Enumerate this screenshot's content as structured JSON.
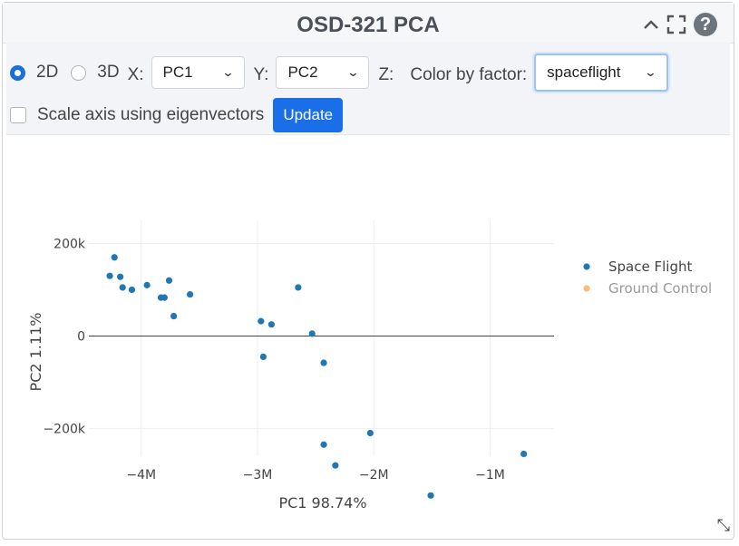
{
  "panel": {
    "title": "OSD-321 PCA",
    "icons": [
      "chevron-up-icon",
      "expand-icon",
      "help-icon"
    ]
  },
  "controls": {
    "mode_2d": "2D",
    "mode_3d": "3D",
    "mode_selected": "2D",
    "x_label": "X:",
    "x_value": "PC1",
    "y_label": "Y:",
    "y_value": "PC2",
    "z_label": "Z:",
    "color_label": "Color by factor:",
    "color_value": "spaceflight",
    "scale_label": "Scale axis using eigenvectors",
    "scale_checked": false,
    "update_label": "Update"
  },
  "chart_data": {
    "type": "scatter",
    "xlabel": "PC1 98.74%",
    "ylabel": "PC2 1.11%",
    "xlim": [
      -4450000,
      -450000
    ],
    "ylim": [
      -260000,
      250000
    ],
    "x_ticks": [
      -4000000,
      -3000000,
      -2000000,
      -1000000
    ],
    "x_tick_labels": [
      "−4M",
      "−3M",
      "−2M",
      "−1M"
    ],
    "y_ticks": [
      200000,
      0,
      -200000
    ],
    "y_tick_labels": [
      "200k",
      "0",
      "−200k"
    ],
    "grid": true,
    "legend_position": "top-right",
    "series": [
      {
        "name": "Space Flight",
        "color": "#1f77b4",
        "points": [
          [
            -4230000,
            170000
          ],
          [
            -4270000,
            130000
          ],
          [
            -4180000,
            128000
          ],
          [
            -4160000,
            105000
          ],
          [
            -4080000,
            100000
          ],
          [
            -3950000,
            110000
          ],
          [
            -3830000,
            83000
          ],
          [
            -3800000,
            83000
          ],
          [
            -3760000,
            120000
          ],
          [
            -3720000,
            43000
          ],
          [
            -3580000,
            90000
          ],
          [
            -2970000,
            32000
          ],
          [
            -2880000,
            25000
          ],
          [
            -2650000,
            105000
          ],
          [
            -2950000,
            -45000
          ],
          [
            -2530000,
            5000
          ],
          [
            -2430000,
            -58000
          ],
          [
            -2430000,
            -235000
          ],
          [
            -2330000,
            -280000
          ],
          [
            -2030000,
            -210000
          ],
          [
            -1510000,
            -345000
          ],
          [
            -710000,
            -255000
          ]
        ]
      },
      {
        "name": "Ground Control",
        "color": "#ffbb78",
        "visible": false,
        "points": []
      }
    ]
  }
}
